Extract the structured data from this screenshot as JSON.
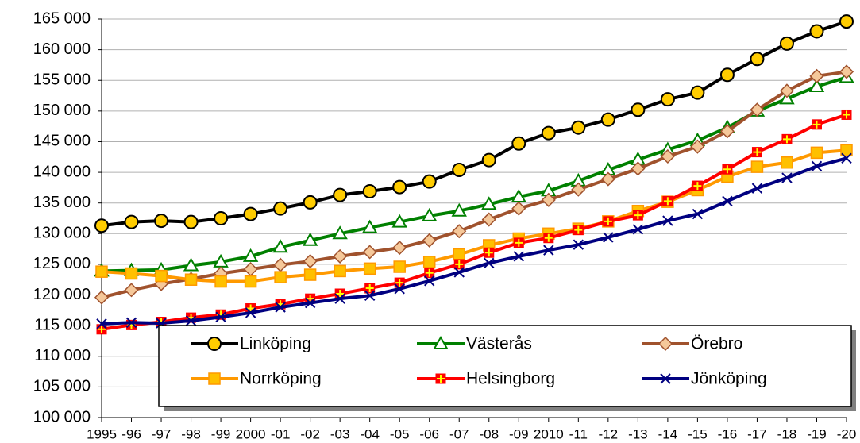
{
  "chart_data": {
    "type": "line",
    "categories": [
      "1995",
      "-96",
      "-97",
      "-98",
      "-99",
      "2000",
      "-01",
      "-02",
      "-03",
      "-04",
      "-05",
      "-06",
      "-07",
      "-08",
      "-09",
      "2010",
      "-11",
      "-12",
      "-13",
      "-14",
      "-15",
      "-16",
      "-17",
      "-18",
      "-19",
      "-20"
    ],
    "ylim": [
      100000,
      165000
    ],
    "yticks": [
      {
        "value": 100000,
        "label": "100 000"
      },
      {
        "value": 105000,
        "label": "105 000"
      },
      {
        "value": 110000,
        "label": "110 000"
      },
      {
        "value": 115000,
        "label": "115 000"
      },
      {
        "value": 120000,
        "label": "120 000"
      },
      {
        "value": 125000,
        "label": "125 000"
      },
      {
        "value": 130000,
        "label": "130 000"
      },
      {
        "value": 135000,
        "label": "135 000"
      },
      {
        "value": 140000,
        "label": "140 000"
      },
      {
        "value": 145000,
        "label": "145 000"
      },
      {
        "value": 150000,
        "label": "150 000"
      },
      {
        "value": 155000,
        "label": "155 000"
      },
      {
        "value": 160000,
        "label": "160 000"
      },
      {
        "value": 165000,
        "label": "165 000"
      }
    ],
    "grid": true,
    "series": [
      {
        "name": "Linköping",
        "color": "#000000",
        "marker": "circle",
        "marker_fill": "#ffcc00",
        "values": [
          131300,
          131900,
          132100,
          131900,
          132500,
          133200,
          134100,
          135100,
          136300,
          136900,
          137600,
          138500,
          140400,
          142000,
          144700,
          146400,
          147300,
          148600,
          150200,
          151900,
          153000,
          155900,
          158500,
          161000,
          163000,
          164600
        ]
      },
      {
        "name": "Västerås",
        "color": "#008000",
        "marker": "triangle",
        "marker_fill": "#ffffff",
        "values": [
          123900,
          124000,
          124100,
          124800,
          125400,
          126300,
          127800,
          128900,
          130000,
          131000,
          131900,
          132900,
          133700,
          134800,
          136000,
          137000,
          138600,
          140400,
          142100,
          143700,
          145200,
          147300,
          150000,
          152000,
          154000,
          155500
        ]
      },
      {
        "name": "Örebro",
        "color": "#a0522d",
        "marker": "diamond",
        "marker_fill": "#f5c89a",
        "values": [
          119600,
          120800,
          121800,
          122600,
          123500,
          124200,
          124900,
          125500,
          126300,
          127000,
          127700,
          128900,
          130400,
          132300,
          134100,
          135500,
          137200,
          138900,
          140600,
          142600,
          144200,
          146700,
          150200,
          153300,
          155700,
          156400
        ]
      },
      {
        "name": "Norrköping",
        "color": "#ff9900",
        "marker": "square",
        "marker_fill": "#ffc000",
        "values": [
          123800,
          123500,
          123100,
          122500,
          122200,
          122200,
          122900,
          123300,
          123900,
          124300,
          124600,
          125400,
          126600,
          128100,
          129200,
          130000,
          130800,
          132000,
          133700,
          135200,
          137100,
          139300,
          140900,
          141600,
          143200,
          143600
        ]
      },
      {
        "name": "Helsingborg",
        "color": "#ff0000",
        "marker": "plus-square",
        "marker_fill": "#ffff00",
        "values": [
          114400,
          115100,
          115600,
          116300,
          116800,
          117800,
          118500,
          119400,
          120200,
          121100,
          122000,
          123600,
          125000,
          126900,
          128500,
          129300,
          130600,
          132000,
          133000,
          135300,
          137800,
          140500,
          143300,
          145400,
          147800,
          149400
        ]
      },
      {
        "name": "Jönköping",
        "color": "#000080",
        "marker": "cross",
        "marker_fill": "#000080",
        "values": [
          115300,
          115500,
          115400,
          115800,
          116400,
          117100,
          118000,
          118700,
          119400,
          119900,
          121000,
          122300,
          123700,
          125200,
          126300,
          127300,
          128200,
          129400,
          130700,
          132100,
          133200,
          135300,
          137400,
          139100,
          141000,
          142300
        ]
      }
    ]
  }
}
